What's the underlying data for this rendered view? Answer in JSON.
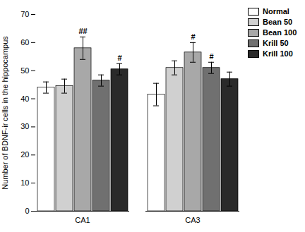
{
  "chart_data": {
    "type": "bar",
    "categories": [
      "CA1",
      "CA3"
    ],
    "series": [
      {
        "name": "Normal",
        "color": "#ffffff",
        "values": [
          44.0,
          41.5
        ],
        "errors": [
          2.0,
          4.0
        ],
        "annotations": [
          null,
          null
        ]
      },
      {
        "name": "Bean 50",
        "color": "#d0d0d0",
        "values": [
          44.5,
          51.0
        ],
        "errors": [
          2.5,
          2.5
        ],
        "annotations": [
          null,
          null
        ]
      },
      {
        "name": "Bean 100",
        "color": "#a8a8a8",
        "values": [
          58.0,
          56.5
        ],
        "errors": [
          4.0,
          3.5
        ],
        "annotations": [
          "##",
          "#"
        ]
      },
      {
        "name": "Krill 50",
        "color": "#707070",
        "values": [
          46.5,
          51.0
        ],
        "errors": [
          2.0,
          2.0
        ],
        "annotations": [
          null,
          "#"
        ]
      },
      {
        "name": "Krill 100",
        "color": "#2a2a2a",
        "values": [
          50.5,
          47.0
        ],
        "errors": [
          2.0,
          2.5
        ],
        "annotations": [
          "#",
          null
        ]
      }
    ],
    "ylabel": "Number of BDNF-ir cells in the hippocampus",
    "ylim": [
      0,
      70
    ],
    "yticks": [
      0,
      10,
      20,
      30,
      40,
      50,
      60,
      70
    ],
    "grid": false,
    "legend": "upper right"
  }
}
